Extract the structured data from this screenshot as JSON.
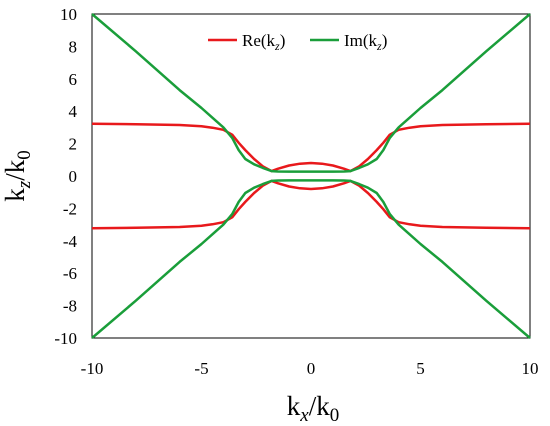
{
  "chart_data": {
    "type": "line",
    "xlabel": {
      "base": "k",
      "sub": "x",
      "post": "/k",
      "post_sub": "0"
    },
    "ylabel": {
      "base": "k",
      "sub": "z",
      "post": "/k",
      "post_sub": "0"
    },
    "xlim": [
      -10,
      10
    ],
    "ylim": [
      -10,
      10
    ],
    "xticks": [
      "-10",
      "-5",
      "0",
      "5",
      "10"
    ],
    "yticks": [
      "10",
      "8",
      "6",
      "4",
      "2",
      "0",
      "-2",
      "-4",
      "-6",
      "-8",
      "-10"
    ],
    "grid": false,
    "legend_position": "top-center",
    "series": [
      {
        "name": "Re(kz)",
        "legend_label": {
          "base": "Re(k",
          "sub": "z",
          "post": ")"
        },
        "color": "#e8191c",
        "branches": [
          {
            "x": [
              -10,
              -8,
              -6,
              -5,
              -4.5,
              -4,
              -3.6,
              -3.3,
              -3,
              -2.6,
              -2.2,
              -1.8,
              -1.5,
              -1,
              -0.5,
              0,
              0.5,
              1,
              1.5,
              1.8,
              2.2,
              2.6,
              3,
              3.3,
              3.6,
              4,
              4.5,
              5,
              6,
              8,
              10
            ],
            "y": [
              3.22,
              3.2,
              3.15,
              3.07,
              2.98,
              2.85,
              2.55,
              2.05,
              1.6,
              1.05,
              0.6,
              0.3,
              0.45,
              0.65,
              0.76,
              0.8,
              0.76,
              0.65,
              0.45,
              0.3,
              0.6,
              1.05,
              1.6,
              2.05,
              2.55,
              2.85,
              2.98,
              3.07,
              3.15,
              3.2,
              3.22
            ]
          },
          {
            "x": [
              -10,
              -8,
              -6,
              -5,
              -4.5,
              -4,
              -3.6,
              -3.3,
              -3,
              -2.6,
              -2.2,
              -1.8,
              -1.5,
              -1,
              -0.5,
              0,
              0.5,
              1,
              1.5,
              1.8,
              2.2,
              2.6,
              3,
              3.3,
              3.6,
              4,
              4.5,
              5,
              6,
              8,
              10
            ],
            "y": [
              -3.22,
              -3.2,
              -3.15,
              -3.07,
              -2.98,
              -2.85,
              -2.55,
              -2.05,
              -1.6,
              -1.05,
              -0.6,
              -0.3,
              -0.45,
              -0.65,
              -0.76,
              -0.8,
              -0.76,
              -0.65,
              -0.45,
              -0.3,
              -0.6,
              -1.05,
              -1.6,
              -2.05,
              -2.55,
              -2.85,
              -2.98,
              -3.07,
              -3.15,
              -3.2,
              -3.22
            ]
          }
        ]
      },
      {
        "name": "Im(kz)",
        "legend_label": {
          "base": "Im(k",
          "sub": "z",
          "post": ")"
        },
        "color": "#1a9e3a",
        "branches": [
          {
            "x": [
              -10,
              -8,
              -6,
              -5,
              -4.5,
              -4,
              -3.6,
              -3.3,
              -3,
              -2.6,
              -2.2,
              -1.8,
              -1.5,
              -1,
              0,
              1,
              1.5,
              1.8,
              2.2,
              2.6,
              3,
              3.3,
              3.6,
              4,
              4.5,
              5,
              6,
              8,
              10
            ],
            "y": [
              10,
              7.7,
              5.3,
              4.2,
              3.6,
              3.0,
              2.35,
              1.6,
              1.05,
              0.72,
              0.5,
              0.3,
              0.28,
              0.27,
              0.27,
              0.27,
              0.28,
              0.3,
              0.5,
              0.72,
              1.05,
              1.6,
              2.35,
              3.0,
              3.6,
              4.2,
              5.3,
              7.7,
              10
            ]
          },
          {
            "x": [
              -10,
              -8,
              -6,
              -5,
              -4.5,
              -4,
              -3.6,
              -3.3,
              -3,
              -2.6,
              -2.2,
              -1.8,
              -1.5,
              -1,
              0,
              1,
              1.5,
              1.8,
              2.2,
              2.6,
              3,
              3.3,
              3.6,
              4,
              4.5,
              5,
              6,
              8,
              10
            ],
            "y": [
              -10,
              -7.7,
              -5.3,
              -4.2,
              -3.6,
              -3.0,
              -2.35,
              -1.6,
              -1.05,
              -0.72,
              -0.5,
              -0.3,
              -0.28,
              -0.27,
              -0.27,
              -0.27,
              -0.28,
              -0.3,
              -0.5,
              -0.72,
              -1.05,
              -1.6,
              -2.35,
              -3.0,
              -3.6,
              -4.2,
              -5.3,
              -7.7,
              -10
            ]
          }
        ]
      }
    ]
  }
}
